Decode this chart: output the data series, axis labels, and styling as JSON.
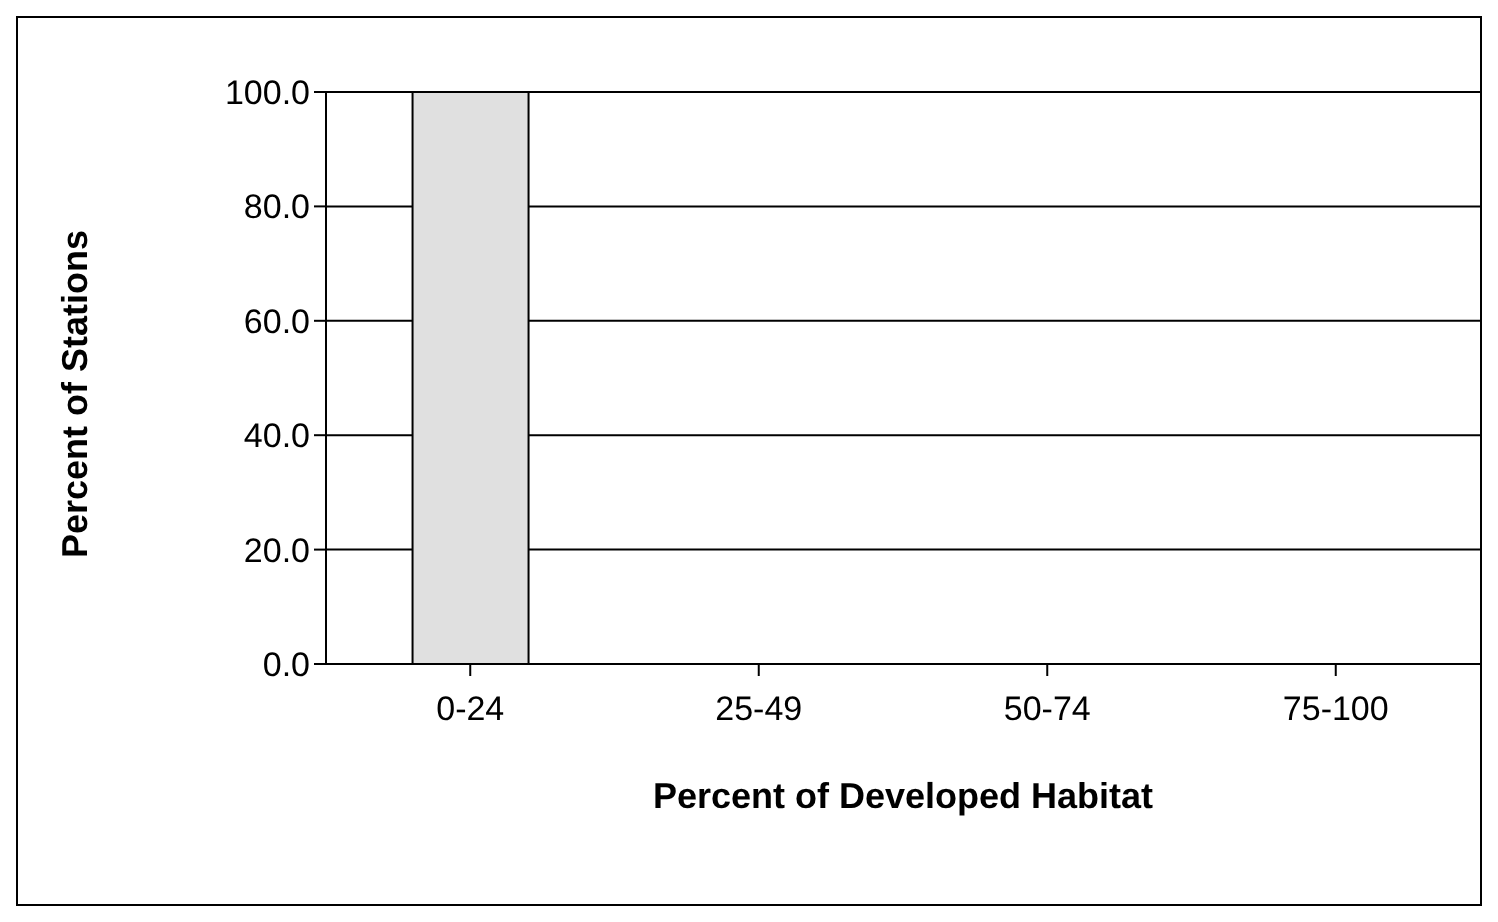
{
  "chart_data": {
    "type": "bar",
    "xlabel": "Percent of Developed Habitat",
    "ylabel": "Percent of Stations",
    "categories": [
      "0-24",
      "25-49",
      "50-74",
      "75-100"
    ],
    "values": [
      100.0,
      0.0,
      0.0,
      0.0
    ],
    "color": "#e0e0e0",
    "ylim": [
      0,
      100
    ],
    "yticks": [
      {
        "value": 0,
        "label": "0.0"
      },
      {
        "value": 20,
        "label": "20.0"
      },
      {
        "value": 40,
        "label": "40.0"
      },
      {
        "value": 60,
        "label": "60.0"
      },
      {
        "value": 80,
        "label": "80.0"
      },
      {
        "value": 100,
        "label": "100.0"
      }
    ],
    "grid": "y"
  }
}
